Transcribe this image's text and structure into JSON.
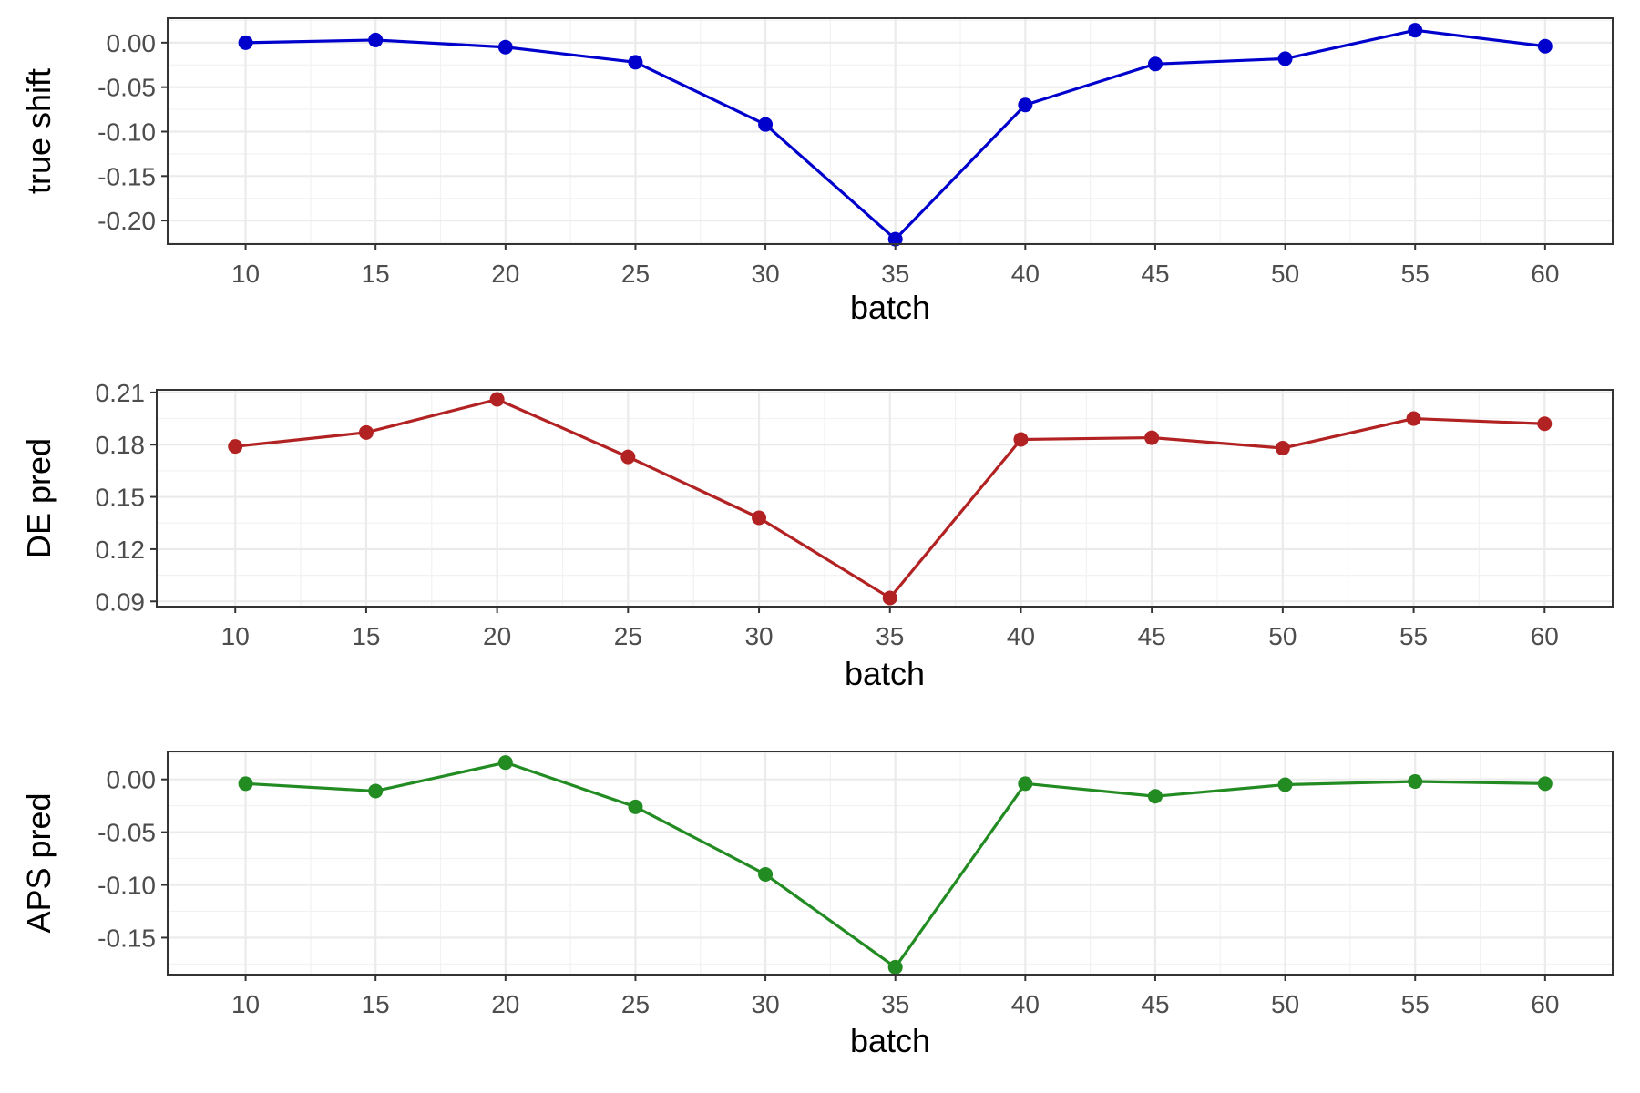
{
  "chart_data": [
    {
      "type": "line",
      "xlabel": "batch",
      "ylabel": "true shift",
      "color": "#0000CD",
      "x": [
        10,
        15,
        20,
        25,
        30,
        35,
        40,
        45,
        50,
        55,
        60
      ],
      "values": [
        0.0,
        0.003,
        -0.005,
        -0.022,
        -0.092,
        -0.221,
        -0.07,
        -0.024,
        -0.018,
        0.014,
        -0.004
      ],
      "xticks": [
        10,
        15,
        20,
        25,
        30,
        35,
        40,
        45,
        50,
        55,
        60
      ],
      "yticks": [
        0.0,
        -0.05,
        -0.1,
        -0.15,
        -0.2
      ],
      "ytick_labels": [
        "0.00",
        "-0.05",
        "-0.10",
        "-0.15",
        "-0.20"
      ],
      "xlim": [
        7,
        62.6
      ],
      "ylim": [
        -0.2265,
        0.0275
      ],
      "grid": true
    },
    {
      "type": "line",
      "xlabel": "batch",
      "ylabel": "DE pred",
      "color": "#B22222",
      "x": [
        10,
        15,
        20,
        25,
        30,
        35,
        40,
        45,
        50,
        55,
        60
      ],
      "values": [
        0.179,
        0.187,
        0.206,
        0.173,
        0.138,
        0.092,
        0.183,
        0.184,
        0.178,
        0.195,
        0.192
      ],
      "xticks": [
        10,
        15,
        20,
        25,
        30,
        35,
        40,
        45,
        50,
        55,
        60
      ],
      "yticks": [
        0.09,
        0.12,
        0.15,
        0.18,
        0.21
      ],
      "ytick_labels": [
        "0.09",
        "0.12",
        "0.15",
        "0.18",
        "0.21"
      ],
      "xlim": [
        7,
        62.6
      ],
      "ylim": [
        0.087,
        0.2115
      ],
      "grid": true
    },
    {
      "type": "line",
      "xlabel": "batch",
      "ylabel": "APS pred",
      "color": "#228B22",
      "x": [
        10,
        15,
        20,
        25,
        30,
        35,
        40,
        45,
        50,
        55,
        60
      ],
      "values": [
        -0.004,
        -0.011,
        0.016,
        -0.026,
        -0.09,
        -0.178,
        -0.004,
        -0.016,
        -0.005,
        -0.002,
        -0.004
      ],
      "xticks": [
        10,
        15,
        20,
        25,
        30,
        35,
        40,
        45,
        50,
        55,
        60
      ],
      "yticks": [
        0.0,
        -0.05,
        -0.1,
        -0.15
      ],
      "ytick_labels": [
        "0.00",
        "-0.05",
        "-0.10",
        "-0.15"
      ],
      "xlim": [
        7,
        62.6
      ],
      "ylim": [
        -0.185,
        0.0265
      ],
      "grid": true
    }
  ]
}
